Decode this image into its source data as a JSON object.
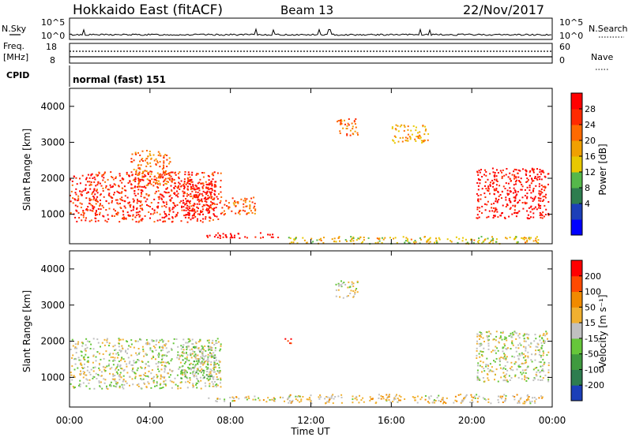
{
  "header": {
    "station": "Hokkaido East (fitACF)",
    "beam": "Beam 13",
    "date": "22/Nov/2017"
  },
  "noise_panel": {
    "left_label": "N.Sky",
    "right_label": "N.Search",
    "ticks_left": [
      "10^5",
      "10^0"
    ],
    "ticks_right": [
      "10^5",
      "10^0"
    ]
  },
  "freq_panel": {
    "left_label_1": "Freq.",
    "left_label_2": "[MHz]",
    "ticks_left": [
      "18",
      "8"
    ],
    "ticks_right": [
      "60",
      "0"
    ],
    "right_label": "Nave"
  },
  "cpid_panel": {
    "left_label": "CPID",
    "value": "normal (fast) 151"
  },
  "power_panel": {
    "ylabel": "Slant Range [km]",
    "yticks": [
      "4000",
      "3000",
      "2000",
      "1000"
    ],
    "colorbar_label": "Power [dB]",
    "colorbar_ticks": [
      "28",
      "24",
      "20",
      "16",
      "12",
      "8",
      "4"
    ],
    "colorbar_colors": [
      "#0000ff",
      "#1c3fb8",
      "#2e7d4f",
      "#55b84a",
      "#e8c800",
      "#f0a000",
      "#ff6a00",
      "#ff2a00",
      "#ff0000"
    ]
  },
  "velocity_panel": {
    "ylabel": "Slant Range [km]",
    "yticks": [
      "4000",
      "3000",
      "2000",
      "1000"
    ],
    "colorbar_label": "Velocity [m s⁻¹]",
    "colorbar_ticks": [
      "200",
      "100",
      "50",
      "15",
      "-15",
      "-50",
      "-100",
      "-200"
    ],
    "colorbar_colors": [
      "#1c3fb8",
      "#2e7d4f",
      "#3f9a3f",
      "#66c63a",
      "#c0c0c0",
      "#f0b030",
      "#f08a00",
      "#ff4a00",
      "#ff0000"
    ]
  },
  "xaxis": {
    "xlabel": "Time UT",
    "ticks": [
      "00:00",
      "04:00",
      "08:00",
      "12:00",
      "16:00",
      "20:00",
      "00:00"
    ]
  },
  "chart_data": [
    {
      "type": "heatmap",
      "title": "Hokkaido East (fitACF) Beam 13 22/Nov/2017",
      "xlabel": "Time UT",
      "ylabel": "Slant Range [km]",
      "xlim": [
        0,
        24
      ],
      "ylim": [
        180,
        4500
      ],
      "colorbar": "Power [dB]",
      "clim": [
        0,
        30
      ],
      "regions": [
        {
          "t0": 0.0,
          "t1": 7.5,
          "r0": 800,
          "r1": 2200,
          "v": 26
        },
        {
          "t0": 3.0,
          "t1": 5.0,
          "r0": 1800,
          "r1": 2800,
          "v": 22
        },
        {
          "t0": 5.5,
          "t1": 7.2,
          "r0": 1000,
          "r1": 1900,
          "v": 28
        },
        {
          "t0": 7.5,
          "t1": 9.2,
          "r0": 1000,
          "r1": 1500,
          "v": 22
        },
        {
          "t0": 6.8,
          "t1": 10.5,
          "r0": 350,
          "r1": 500,
          "v": 28
        },
        {
          "t0": 13.2,
          "t1": 14.3,
          "r0": 3200,
          "r1": 3700,
          "v": 22
        },
        {
          "t0": 16.0,
          "t1": 17.8,
          "r0": 3000,
          "r1": 3500,
          "v": 18
        },
        {
          "t0": 20.2,
          "t1": 23.8,
          "r0": 900,
          "r1": 2300,
          "v": 28
        },
        {
          "t0": 10.5,
          "t1": 23.5,
          "r0": 200,
          "r1": 400,
          "v": 16
        }
      ]
    },
    {
      "type": "heatmap",
      "title": "Hokkaido East (fitACF) Beam 13 22/Nov/2017",
      "xlabel": "Time UT",
      "ylabel": "Slant Range [km]",
      "xlim": [
        0,
        24
      ],
      "ylim": [
        180,
        4500
      ],
      "colorbar": "Velocity [m s⁻¹]",
      "clim": [
        -200,
        200
      ],
      "regions": [
        {
          "t0": 0.0,
          "t1": 7.5,
          "r0": 700,
          "r1": 2100,
          "v": 0
        },
        {
          "t0": 5.5,
          "t1": 7.2,
          "r0": 1000,
          "r1": 1900,
          "v": -30
        },
        {
          "t0": 6.8,
          "t1": 10.5,
          "r0": 350,
          "r1": 500,
          "v": 20
        },
        {
          "t0": 10.5,
          "t1": 11.0,
          "r0": 1950,
          "r1": 2100,
          "v": 200
        },
        {
          "t0": 13.2,
          "t1": 14.3,
          "r0": 3200,
          "r1": 3700,
          "v": 0
        },
        {
          "t0": 20.2,
          "t1": 23.8,
          "r0": 900,
          "r1": 2300,
          "v": 0
        },
        {
          "t0": 10.5,
          "t1": 23.5,
          "r0": 300,
          "r1": 550,
          "v": 30
        }
      ]
    }
  ]
}
